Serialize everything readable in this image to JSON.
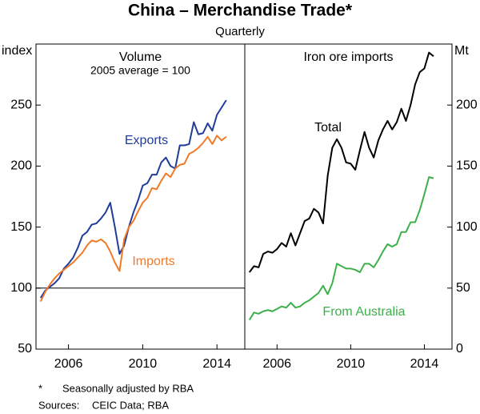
{
  "title": "China – Merchandise Trade*",
  "subtitle": "Quarterly",
  "chart_data": [
    {
      "type": "line",
      "title": "Volume",
      "subtitle": "2005 average = 100",
      "y_label": "index",
      "y_side": "left",
      "x": [
        2004.5,
        2004.75,
        2005,
        2005.25,
        2005.5,
        2005.75,
        2006,
        2006.25,
        2006.5,
        2006.75,
        2007,
        2007.25,
        2007.5,
        2007.75,
        2008,
        2008.25,
        2008.5,
        2008.75,
        2009,
        2009.25,
        2009.5,
        2009.75,
        2010,
        2010.25,
        2010.5,
        2010.75,
        2011,
        2011.25,
        2011.5,
        2011.75,
        2012,
        2012.25,
        2012.5,
        2012.75,
        2013,
        2013.25,
        2013.5,
        2013.75,
        2014,
        2014.25,
        2014.5
      ],
      "xlim": [
        2004.25,
        2015.5
      ],
      "xticks": [
        2006,
        2010,
        2014
      ],
      "ylim": [
        50,
        300
      ],
      "yticks": [
        50,
        100,
        150,
        200,
        250
      ],
      "refline": 100,
      "series": [
        {
          "name": "Exports",
          "color": "#1f3d99",
          "values": [
            92,
            98,
            101,
            104,
            108,
            116,
            120,
            125,
            133,
            143,
            146,
            152,
            153,
            157,
            162,
            170,
            150,
            128,
            135,
            150,
            162,
            172,
            184,
            186,
            193,
            193,
            203,
            207,
            200,
            198,
            217,
            217,
            218,
            236,
            226,
            227,
            235,
            229,
            242,
            248,
            254
          ]
        },
        {
          "name": "Imports",
          "color": "#f07a2a",
          "values": [
            89,
            97,
            103,
            108,
            112,
            115,
            118,
            121,
            125,
            129,
            135,
            139,
            138,
            140,
            137,
            130,
            121,
            114,
            140,
            150,
            155,
            163,
            170,
            174,
            182,
            181,
            188,
            194,
            191,
            198,
            201,
            202,
            210,
            212,
            215,
            219,
            224,
            218,
            225,
            221,
            224
          ]
        }
      ]
    },
    {
      "type": "line",
      "title": "Iron ore imports",
      "y_label": "Mt",
      "y_side": "right",
      "x": [
        2004.5,
        2004.75,
        2005,
        2005.25,
        2005.5,
        2005.75,
        2006,
        2006.25,
        2006.5,
        2006.75,
        2007,
        2007.25,
        2007.5,
        2007.75,
        2008,
        2008.25,
        2008.5,
        2008.75,
        2009,
        2009.25,
        2009.5,
        2009.75,
        2010,
        2010.25,
        2010.5,
        2010.75,
        2011,
        2011.25,
        2011.5,
        2011.75,
        2012,
        2012.25,
        2012.5,
        2012.75,
        2013,
        2013.25,
        2013.5,
        2013.75,
        2014,
        2014.25,
        2014.5
      ],
      "xlim": [
        2004.25,
        2015.5
      ],
      "xticks": [
        2006,
        2010,
        2014
      ],
      "ylim": [
        0,
        250
      ],
      "yticks": [
        0,
        50,
        100,
        150,
        200
      ],
      "series": [
        {
          "name": "Total",
          "color": "#000000",
          "values": [
            63,
            68,
            67,
            78,
            80,
            79,
            82,
            87,
            84,
            95,
            85,
            95,
            105,
            107,
            115,
            112,
            103,
            142,
            165,
            172,
            165,
            153,
            152,
            147,
            163,
            178,
            165,
            157,
            171,
            180,
            187,
            180,
            186,
            197,
            187,
            200,
            217,
            227,
            230,
            243,
            240
          ]
        },
        {
          "name": "From Australia",
          "color": "#3cb04a",
          "values": [
            24,
            30,
            29,
            31,
            32,
            31,
            33,
            35,
            34,
            38,
            34,
            35,
            38,
            40,
            43,
            46,
            52,
            45,
            54,
            70,
            68,
            66,
            66,
            65,
            63,
            70,
            70,
            67,
            73,
            80,
            86,
            84,
            86,
            96,
            96,
            104,
            104,
            114,
            127,
            141,
            140
          ]
        }
      ]
    }
  ],
  "notes": [
    {
      "mark": "*",
      "text": "Seasonally adjusted by RBA"
    },
    {
      "mark": "Sources:",
      "text": "CEIC Data; RBA"
    }
  ]
}
